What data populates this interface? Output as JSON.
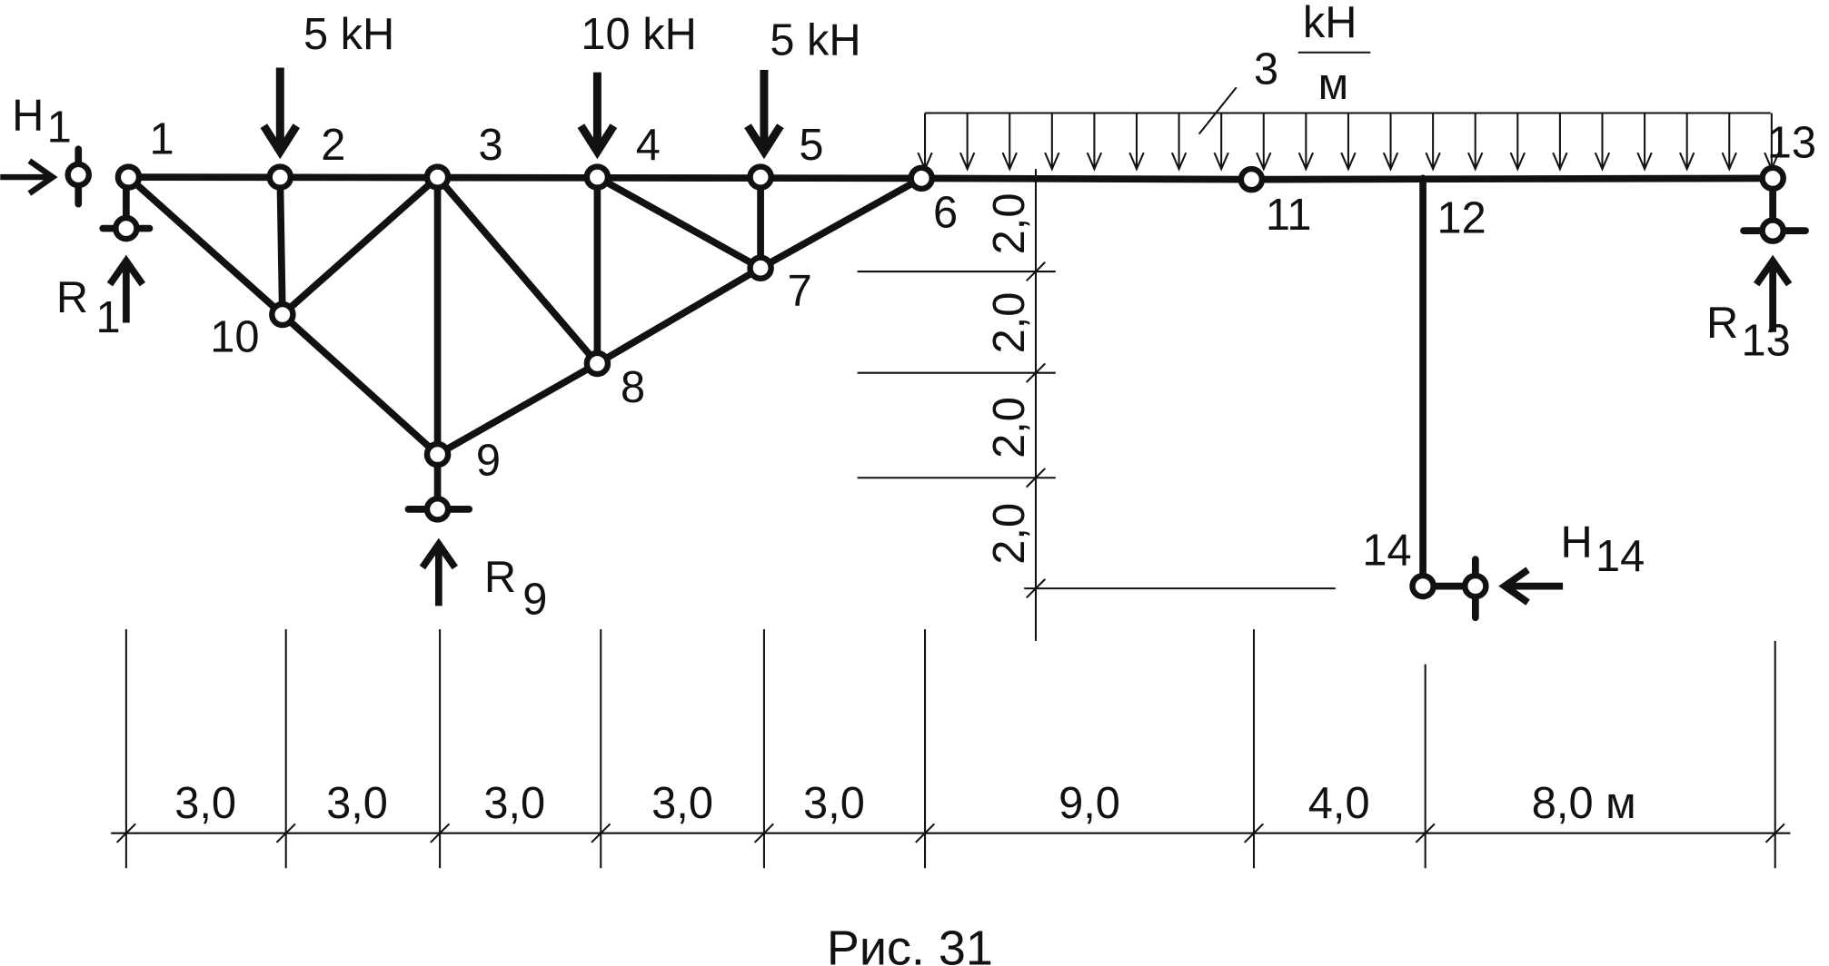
{
  "nodes": [
    {
      "label": "1"
    },
    {
      "label": "2"
    },
    {
      "label": "3"
    },
    {
      "label": "4"
    },
    {
      "label": "5"
    },
    {
      "label": "6"
    },
    {
      "label": "7"
    },
    {
      "label": "8"
    },
    {
      "label": "9"
    },
    {
      "label": "10"
    },
    {
      "label": "11"
    },
    {
      "label": "12"
    },
    {
      "label": "13"
    },
    {
      "label": "14"
    }
  ],
  "loads": [
    {
      "label": "5 kH"
    },
    {
      "label": "10 kH"
    },
    {
      "label": "5 kH"
    }
  ],
  "distributed_load": {
    "value": "3",
    "unit_top": "kH",
    "unit_bottom": "м"
  },
  "reactions": [
    {
      "name": "H",
      "sub": "1"
    },
    {
      "name": "R",
      "sub": "1"
    },
    {
      "name": "R",
      "sub": "9"
    },
    {
      "name": "R",
      "sub": "13"
    },
    {
      "name": "H",
      "sub": "14"
    }
  ],
  "vertical_dims": [
    "2,0",
    "2,0",
    "2,0",
    "2,0"
  ],
  "horizontal_dims": [
    "3,0",
    "3,0",
    "3,0",
    "3,0",
    "3,0",
    "9,0",
    "4,0",
    "8,0 м"
  ],
  "caption": "Рис. 31"
}
